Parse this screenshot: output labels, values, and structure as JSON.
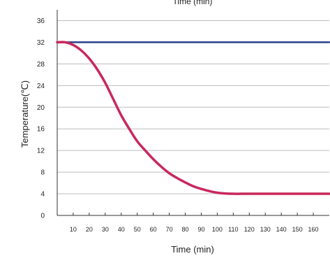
{
  "chart_data": {
    "type": "line",
    "title": "Time (min)",
    "xlabel": "Time (min)",
    "ylabel": "Temperature(℃)",
    "xlim": [
      0,
      170
    ],
    "ylim": [
      0,
      38
    ],
    "x_ticks": [
      10,
      20,
      30,
      40,
      50,
      60,
      70,
      80,
      90,
      100,
      110,
      120,
      130,
      140,
      150,
      160
    ],
    "x_tick_labels": [
      "10",
      "20",
      "30",
      "40",
      "50",
      "60",
      "70",
      "80",
      "90",
      "100",
      "110",
      "120",
      "130",
      "140",
      "150",
      "160"
    ],
    "y_ticks": [
      0,
      4,
      8,
      12,
      16,
      20,
      24,
      28,
      32,
      36
    ],
    "y_tick_labels": [
      "0",
      "4",
      "8",
      "12",
      "16",
      "20",
      "24",
      "28",
      "32",
      "36"
    ],
    "grid": "horizontal",
    "series": [
      {
        "color": "#2b3f8c",
        "x": [
          0,
          170
        ],
        "y": [
          32,
          32
        ]
      },
      {
        "color": "#c8285c",
        "x": [
          0,
          5,
          10,
          15,
          20,
          25,
          30,
          35,
          40,
          45,
          50,
          55,
          60,
          65,
          70,
          75,
          80,
          85,
          90,
          95,
          100,
          105,
          110,
          115,
          120,
          130,
          140,
          150,
          160,
          170
        ],
        "y": [
          32,
          32,
          31.5,
          30.5,
          29,
          27,
          24.5,
          21.5,
          18.5,
          16,
          13.7,
          12,
          10.4,
          9,
          7.8,
          6.9,
          6.1,
          5.4,
          4.9,
          4.5,
          4.2,
          4.05,
          4,
          4,
          4,
          4,
          4,
          4,
          4,
          4
        ]
      }
    ]
  }
}
